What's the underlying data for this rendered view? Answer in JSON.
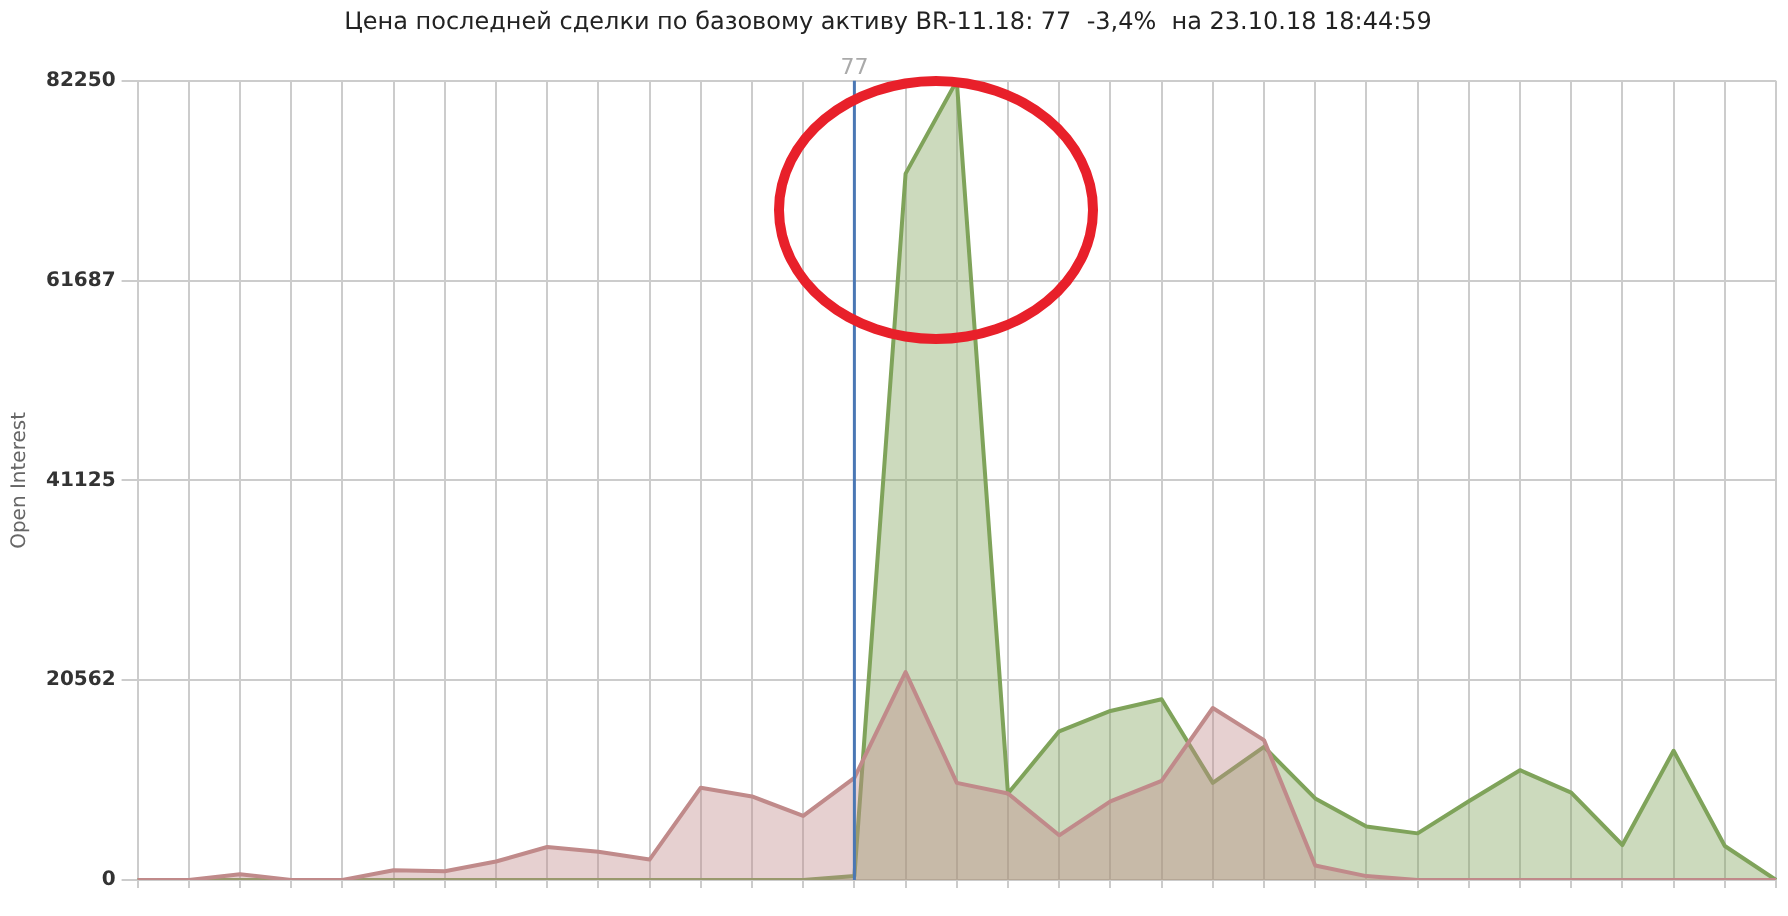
{
  "chart_data": {
    "type": "area",
    "title": "Цена последней сделки по базовому активу BR-11.18: 77  -3,4%  на 23.10.18 18:44:59",
    "ylabel": "Open Interest",
    "categories": [
      null,
      null,
      null,
      null,
      null,
      null,
      null,
      null,
      null,
      null,
      null,
      null,
      null,
      null,
      null,
      null,
      null,
      null,
      null,
      null,
      null,
      null,
      null,
      null,
      null,
      null,
      null,
      null,
      null,
      null,
      null,
      null,
      null
    ],
    "series": [
      {
        "color": "#c08a8a",
        "values": [
          0,
          0,
          600,
          0,
          0,
          1000,
          900,
          1900,
          3400,
          2900,
          2100,
          9500,
          8600,
          6600,
          10500,
          21400,
          10000,
          8900,
          4600,
          8100,
          10200,
          17700,
          14400,
          1500,
          400,
          0,
          0,
          0,
          0,
          0,
          0,
          0,
          0
        ]
      },
      {
        "color": "#7fa35a",
        "values": [
          0,
          0,
          0,
          0,
          0,
          0,
          0,
          0,
          0,
          0,
          0,
          0,
          0,
          0,
          400,
          72700,
          82250,
          8900,
          15300,
          17400,
          18600,
          10000,
          13700,
          8400,
          5500,
          4800,
          8100,
          11300,
          9000,
          3600,
          13300,
          3500,
          0
        ]
      }
    ],
    "ylim": [
      0,
      82250
    ],
    "yticks": [
      0,
      20562,
      41125,
      61687,
      82250
    ],
    "annotations": [
      "77"
    ],
    "grid": true,
    "legend": false,
    "tick_labels": "y",
    "marker": "none"
  }
}
